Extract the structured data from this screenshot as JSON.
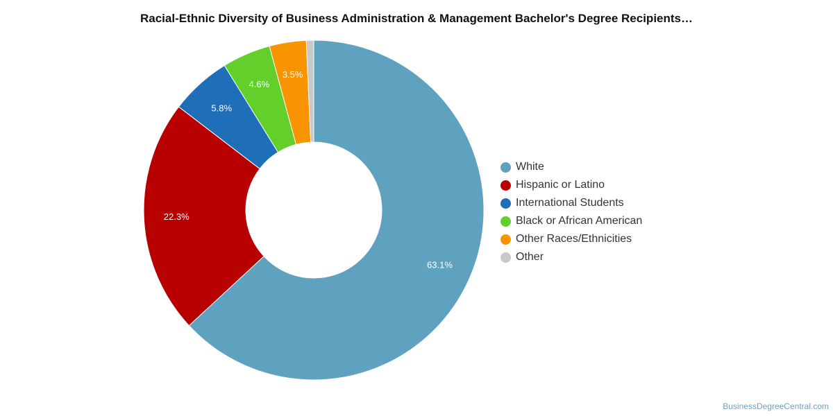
{
  "chart_data": {
    "type": "pie",
    "title": "Racial-Ethnic Diversity of Business Administration & Management Bachelor's Degree Recipients…",
    "legend_placement": "right",
    "slices": [
      {
        "name": "White",
        "value": 63.1,
        "label": "63.1%",
        "color": "#5ea2c0"
      },
      {
        "name": "Hispanic or Latino",
        "value": 22.3,
        "label": "22.3%",
        "color": "#b80000"
      },
      {
        "name": "International Students",
        "value": 5.8,
        "label": "5.8%",
        "color": "#1f6fb8"
      },
      {
        "name": "Black or African American",
        "value": 4.6,
        "label": "4.6%",
        "color": "#62cf2a"
      },
      {
        "name": "Other Races/Ethnicities",
        "value": 3.5,
        "label": "3.5%",
        "color": "#f79400"
      },
      {
        "name": "Other",
        "value": 0.7,
        "label": "",
        "color": "#c9c9c9"
      }
    ]
  },
  "credit": "BusinessDegreeCentral.com"
}
